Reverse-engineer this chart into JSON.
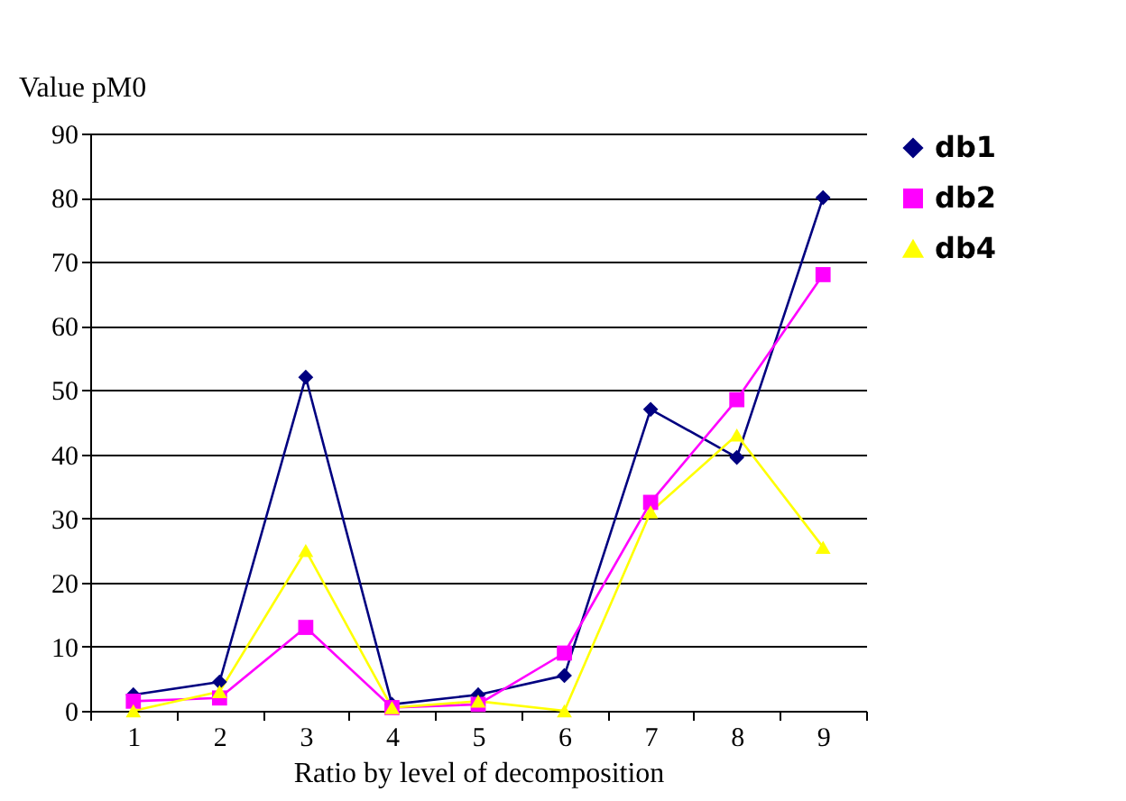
{
  "chart_data": {
    "type": "line",
    "xlabel": "Ratio by level of decomposition",
    "ylabel": "Value pM0",
    "categories": [
      "1",
      "2",
      "3",
      "4",
      "5",
      "6",
      "7",
      "8",
      "9"
    ],
    "series": [
      {
        "name": "db1",
        "color": "#000080",
        "marker": "diamond",
        "values": [
          2.5,
          4.5,
          52,
          1,
          2.5,
          5.5,
          47,
          39.5,
          80
        ]
      },
      {
        "name": "db2",
        "color": "#ff00ff",
        "marker": "square",
        "values": [
          1.5,
          2,
          13,
          0.5,
          1,
          9,
          32.5,
          48.5,
          68
        ]
      },
      {
        "name": "db4",
        "color": "#ffff00",
        "marker": "triangle",
        "values": [
          0,
          3,
          25,
          0.5,
          1.5,
          0,
          31,
          43,
          25.5
        ]
      }
    ],
    "ylim": [
      0,
      90
    ],
    "yticks": [
      0,
      10,
      20,
      30,
      40,
      50,
      60,
      70,
      80,
      90
    ],
    "grid": "y",
    "legend": "top right",
    "line_style": "solid"
  }
}
